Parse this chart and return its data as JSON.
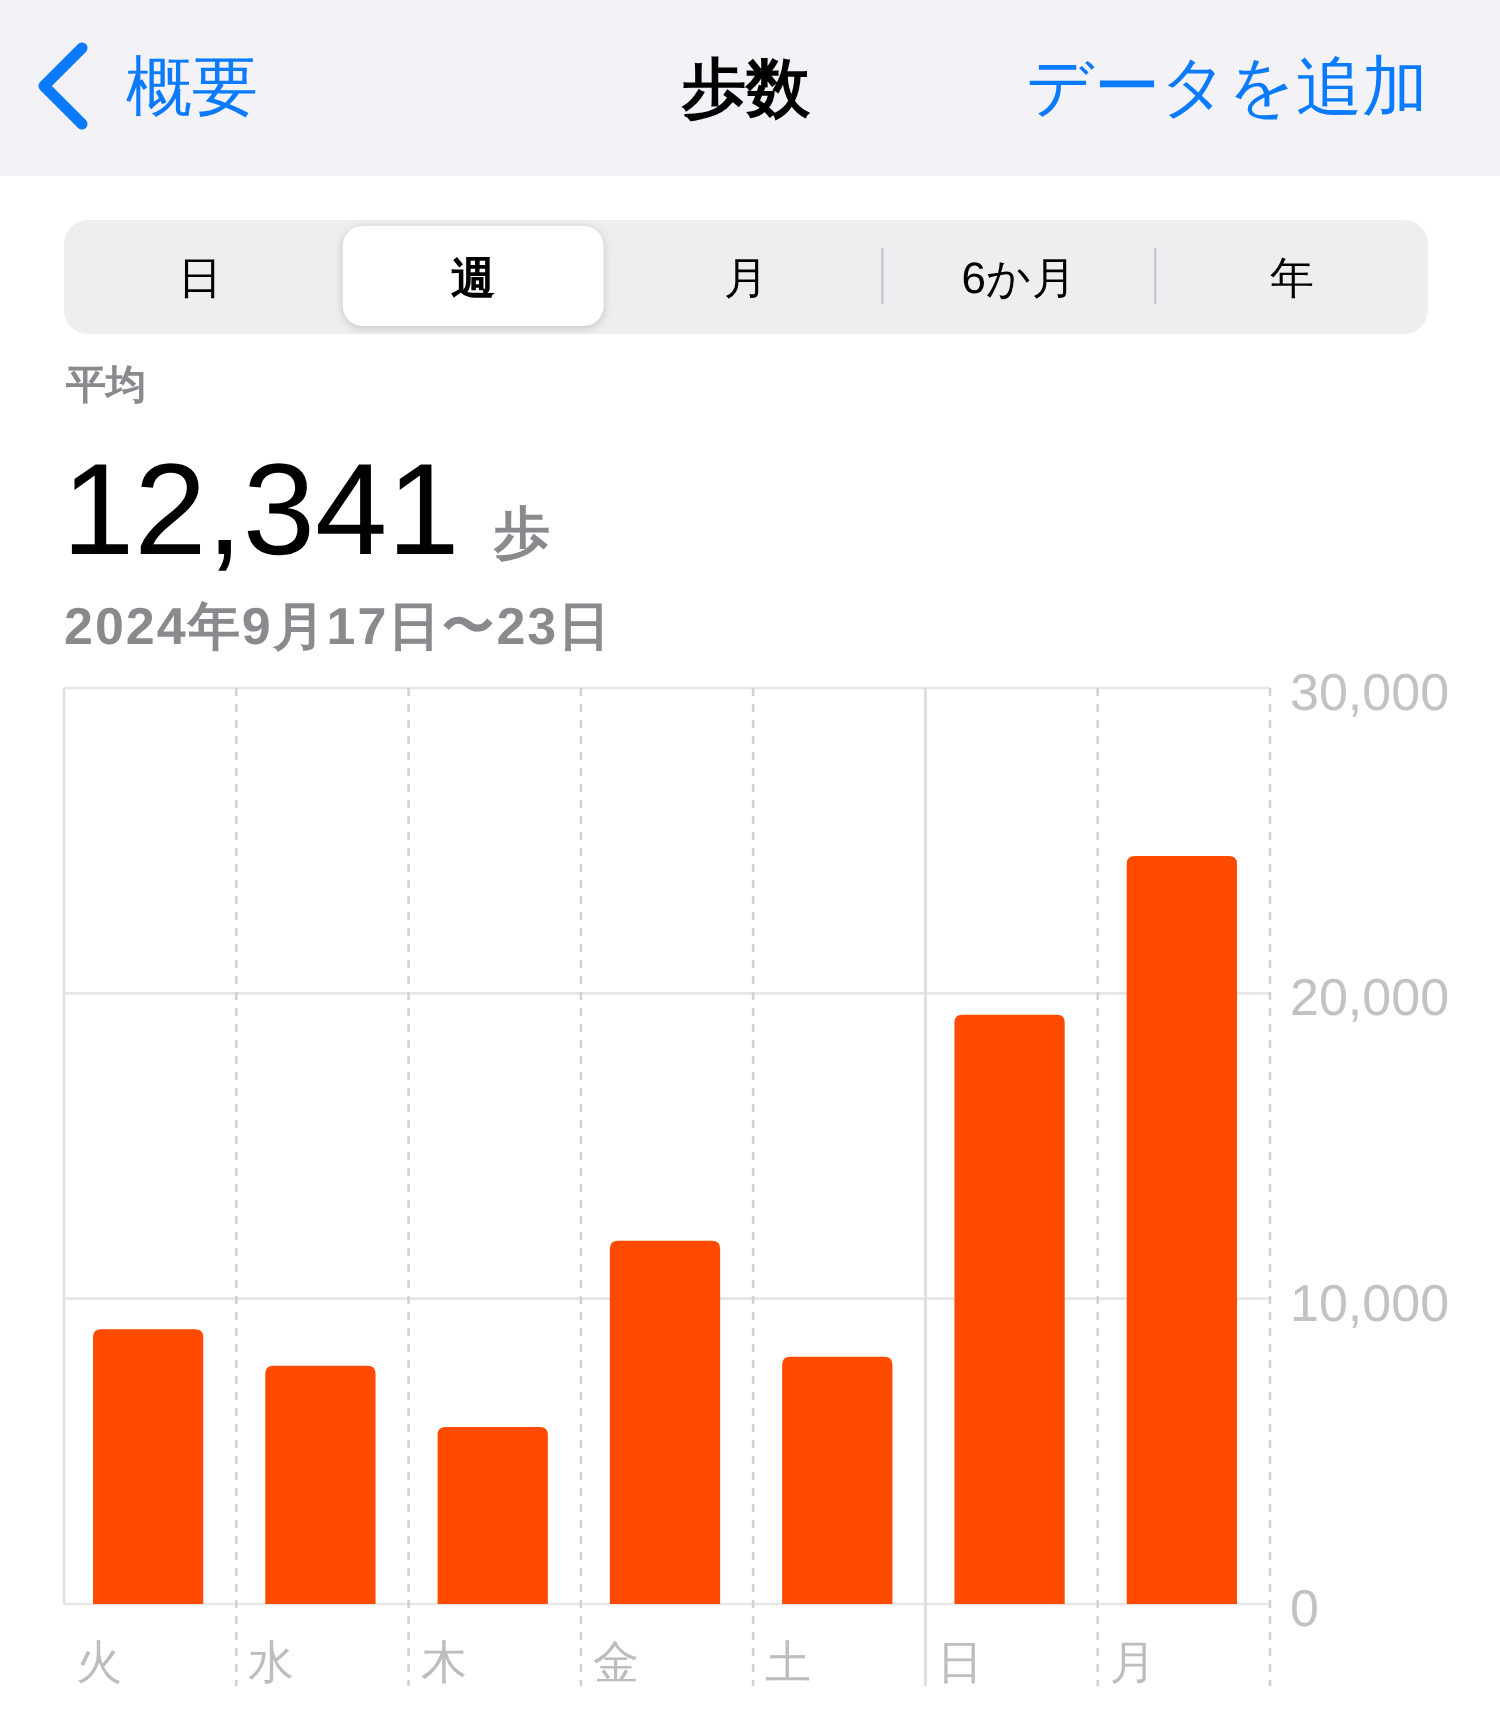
{
  "chart_data": {
    "type": "bar",
    "title": "歩数",
    "subtitle": "2024年9月17日〜23日",
    "annotations": [
      "概要",
      "データを追加",
      "日",
      "週",
      "月",
      "6か月",
      "年",
      "平均",
      "12,341",
      "歩"
    ],
    "categories": [
      "火",
      "水",
      "木",
      "金",
      "土",
      "日",
      "月"
    ],
    "values": [
      9000,
      7800,
      5800,
      11900,
      8100,
      19300,
      24500
    ],
    "color": "#ff4a00",
    "ylim": [
      0,
      30000
    ],
    "yticks": [
      0,
      {
        "value": 10000,
        "label": "10,000"
      },
      {
        "value": 20000,
        "label": "20,000"
      },
      {
        "value": 30000,
        "label": "30,000"
      }
    ],
    "grid": true,
    "ref_lines": [
      {
        "axis": "x",
        "value": "日",
        "color": "#dedede",
        "line_style": "solid"
      }
    ]
  }
}
